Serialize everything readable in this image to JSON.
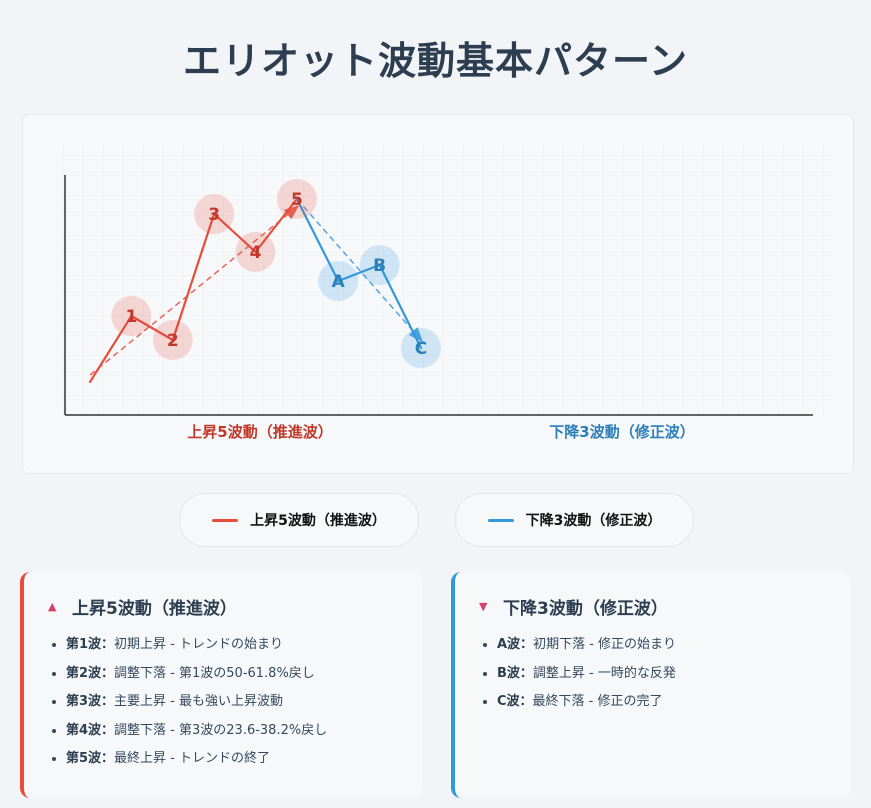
{
  "title": "エリオット波動基本パターン",
  "colors": {
    "impulse": "#e74c3c",
    "corrective": "#3498db",
    "impulse_dark": "#c0392b",
    "corrective_dark": "#2c7fb8"
  },
  "chart_data": {
    "type": "line",
    "title": "",
    "series": [
      {
        "name": "上昇5波動（推進波）",
        "points": [
          {
            "x": 0,
            "y": 0
          },
          {
            "x": 1,
            "y": 66
          },
          {
            "x": 2,
            "y": 42
          },
          {
            "x": 3,
            "y": 168
          },
          {
            "x": 4,
            "y": 130
          },
          {
            "x": 5,
            "y": 183
          }
        ],
        "labels": [
          "",
          "1",
          "2",
          "3",
          "4",
          "5"
        ]
      },
      {
        "name": "下降3波動（修正波）",
        "points": [
          {
            "x": 5,
            "y": 183
          },
          {
            "x": 6,
            "y": 101
          },
          {
            "x": 7,
            "y": 117
          },
          {
            "x": 8,
            "y": 34
          }
        ],
        "labels": [
          "",
          "A",
          "B",
          "C"
        ]
      }
    ],
    "trend_lines": [
      {
        "from": {
          "x": 0,
          "y": 7
        },
        "to": {
          "x": 5,
          "y": 175
        },
        "color": "#e74c3c"
      },
      {
        "from": {
          "x": 5,
          "y": 183
        },
        "to": {
          "x": 8,
          "y": 42
        },
        "color": "#3498db"
      }
    ],
    "section_labels": [
      "上昇5波動（推進波）",
      "下降3波動（修正波）"
    ]
  },
  "legend": {
    "impulse": "上昇5波動（推進波）",
    "corrective": "下降3波動（修正波）"
  },
  "impulse_panel": {
    "heading": "上昇5波動（推進波）",
    "items": [
      {
        "label": "第1波：",
        "text": "初期上昇 - トレンドの始まり"
      },
      {
        "label": "第2波：",
        "text": "調整下落 - 第1波の50-61.8%戻し"
      },
      {
        "label": "第3波：",
        "text": "主要上昇 - 最も強い上昇波動"
      },
      {
        "label": "第4波：",
        "text": "調整下落 - 第3波の23.6-38.2%戻し"
      },
      {
        "label": "第5波：",
        "text": "最終上昇 - トレンドの終了"
      }
    ]
  },
  "corrective_panel": {
    "heading": "下降3波動（修正波）",
    "items": [
      {
        "label": "A波：",
        "text": "初期下落 - 修正の始まり"
      },
      {
        "label": "B波：",
        "text": "調整上昇 - 一時的な反発"
      },
      {
        "label": "C波：",
        "text": "最終下落 - 修正の完了"
      }
    ]
  }
}
